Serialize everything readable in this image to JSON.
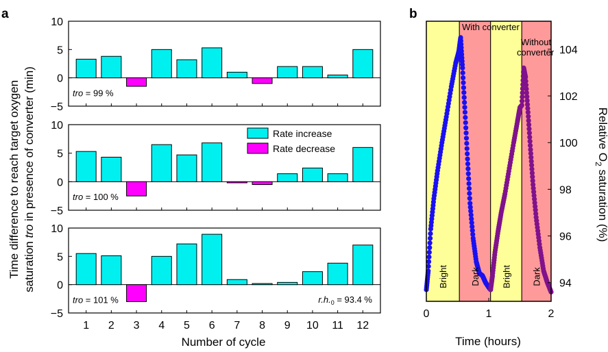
{
  "panel_a": {
    "letter": "a",
    "ylabel_line1": "Time difference to reach target oxygen",
    "ylabel_line2_pre": "saturation ",
    "ylabel_line2_italic": "tro",
    "ylabel_line2_post": " in presence of converter (min)",
    "xlabel": "Number of cycle",
    "legend": {
      "increase": "Rate increase",
      "decrease": "Rate decrease"
    },
    "rh_label_italic": "r.h.",
    "rh_label_sub": "0",
    "rh_label_value": " = 93.4 %"
  },
  "panel_b": {
    "letter": "b",
    "xlabel": "Time (hours)",
    "ylabel_pre": "Relative O",
    "ylabel_sub": "2",
    "ylabel_post": " saturation (%)",
    "series_labels": {
      "with": "With converter",
      "without_line1": "Without",
      "without_line2": "converter"
    },
    "phase_labels": [
      "Bright",
      "Dark",
      "Bright",
      "Dark"
    ]
  },
  "colors": {
    "increase": "#00f0f0",
    "decrease": "#ff00ff",
    "with_converter": "#1a10f0",
    "without_converter": "#80128c",
    "bright_bg": "#ffff99",
    "dark_bg": "#ff9a9a"
  },
  "chart_data": [
    {
      "type": "bar",
      "subplot": "a-top",
      "tro_label_italic": "tro",
      "tro_label_value": " = 99 %",
      "categories": [
        "1",
        "2",
        "3",
        "4",
        "5",
        "6",
        "7",
        "8",
        "9",
        "10",
        "11",
        "12"
      ],
      "values": [
        3.3,
        3.8,
        -1.5,
        5.0,
        3.2,
        5.3,
        1.0,
        -1.0,
        2.0,
        2.0,
        0.5,
        5.0
      ],
      "ylim": [
        -5,
        10
      ],
      "yticks": [
        -5,
        0,
        5,
        10
      ]
    },
    {
      "type": "bar",
      "subplot": "a-middle",
      "tro_label_italic": "tro",
      "tro_label_value": " = 100 %",
      "categories": [
        "1",
        "2",
        "3",
        "4",
        "5",
        "6",
        "7",
        "8",
        "9",
        "10",
        "11",
        "12"
      ],
      "values": [
        5.3,
        4.3,
        -2.5,
        6.5,
        4.7,
        6.8,
        -0.2,
        -0.5,
        1.4,
        2.4,
        1.4,
        6.0
      ],
      "ylim": [
        -5,
        10
      ],
      "yticks": [
        -5,
        0,
        5,
        10
      ]
    },
    {
      "type": "bar",
      "subplot": "a-bottom",
      "tro_label_italic": "tro",
      "tro_label_value": " = 101 %",
      "categories": [
        "1",
        "2",
        "3",
        "4",
        "5",
        "6",
        "7",
        "8",
        "9",
        "10",
        "11",
        "12"
      ],
      "values": [
        5.5,
        5.1,
        -3.0,
        5.0,
        7.2,
        8.9,
        0.9,
        0.2,
        0.4,
        2.3,
        3.8,
        7.0
      ],
      "ylim": [
        -5,
        10
      ],
      "yticks": [
        -5,
        0,
        5,
        10
      ]
    },
    {
      "type": "scatter",
      "subplot": "b",
      "xlim": [
        0,
        2
      ],
      "xticks": [
        0,
        1,
        2
      ],
      "ylim": [
        93.2,
        105.2
      ],
      "yticks": [
        94,
        96,
        98,
        100,
        102,
        104
      ],
      "y_axis_side": "right",
      "phases": [
        {
          "label": "Bright",
          "start": 0.0,
          "end": 0.53
        },
        {
          "label": "Dark",
          "start": 0.53,
          "end": 1.03
        },
        {
          "label": "Bright",
          "start": 1.03,
          "end": 1.53
        },
        {
          "label": "Dark",
          "start": 1.53,
          "end": 2.0
        }
      ],
      "series": [
        {
          "name": "With converter",
          "points": [
            [
              0.0,
              93.7
            ],
            [
              0.03,
              94.5
            ],
            [
              0.07,
              96.3
            ],
            [
              0.12,
              97.6
            ],
            [
              0.18,
              98.8
            ],
            [
              0.25,
              100.0
            ],
            [
              0.32,
              101.1
            ],
            [
              0.4,
              102.4
            ],
            [
              0.47,
              103.4
            ],
            [
              0.52,
              103.9
            ],
            [
              0.55,
              104.5
            ],
            [
              0.58,
              103.2
            ],
            [
              0.62,
              101.3
            ],
            [
              0.66,
              99.3
            ],
            [
              0.7,
              97.4
            ],
            [
              0.75,
              95.9
            ],
            [
              0.8,
              94.9
            ],
            [
              0.85,
              94.4
            ],
            [
              0.9,
              94.3
            ],
            [
              0.95,
              94.0
            ],
            [
              1.0,
              93.8
            ],
            [
              1.03,
              93.7
            ]
          ]
        },
        {
          "name": "Without converter",
          "points": [
            [
              1.03,
              93.7
            ],
            [
              1.06,
              94.3
            ],
            [
              1.1,
              95.3
            ],
            [
              1.15,
              96.2
            ],
            [
              1.2,
              97.0
            ],
            [
              1.26,
              97.8
            ],
            [
              1.33,
              98.9
            ],
            [
              1.4,
              100.0
            ],
            [
              1.46,
              100.9
            ],
            [
              1.5,
              101.5
            ],
            [
              1.53,
              101.6
            ],
            [
              1.56,
              103.2
            ],
            [
              1.59,
              102.8
            ],
            [
              1.63,
              101.3
            ],
            [
              1.67,
              99.7
            ],
            [
              1.71,
              98.2
            ],
            [
              1.76,
              96.8
            ],
            [
              1.82,
              95.5
            ],
            [
              1.88,
              94.5
            ],
            [
              1.94,
              94.0
            ],
            [
              2.0,
              93.6
            ]
          ]
        }
      ]
    }
  ]
}
